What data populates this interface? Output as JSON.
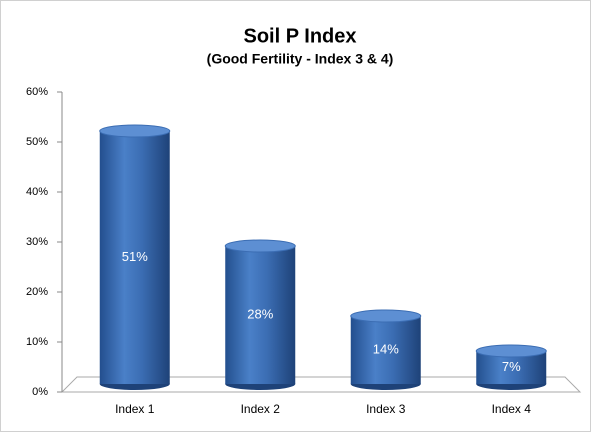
{
  "chart_data": {
    "type": "bar",
    "title": "Soil P Index",
    "subtitle": "(Good Fertility - Index 3 & 4)",
    "categories": [
      "Index 1",
      "Index 2",
      "Index 3",
      "Index 4"
    ],
    "values": [
      51,
      28,
      14,
      7
    ],
    "value_labels": [
      "51%",
      "28%",
      "14%",
      "7%"
    ],
    "color": "#3a6db5",
    "ylim": [
      0,
      60
    ],
    "yticks": [
      {
        "value": 0,
        "label": "0%"
      },
      {
        "value": 10,
        "label": "10%"
      },
      {
        "value": 20,
        "label": "20%"
      },
      {
        "value": 30,
        "label": "30%"
      },
      {
        "value": 40,
        "label": "40%"
      },
      {
        "value": 50,
        "label": "50%"
      },
      {
        "value": 60,
        "label": "60%"
      }
    ],
    "grid": false
  }
}
